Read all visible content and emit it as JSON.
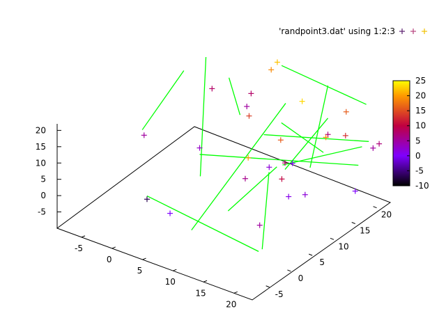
{
  "chart_data": {
    "type": "scatter",
    "legend": {
      "label": "'randpoint3.dat' using 1:2:3",
      "position": "top-right",
      "sample_colors": [
        "#5a1e6e",
        "#b8437e",
        "#f0c000"
      ]
    },
    "axes": {
      "x": {
        "ticks": [
          -5,
          0,
          5,
          10,
          15,
          20
        ],
        "range": [
          -9,
          23
        ]
      },
      "y": {
        "ticks": [
          -5,
          0,
          5,
          10,
          15,
          20
        ],
        "range": [
          -9,
          23
        ]
      },
      "z": {
        "ticks": [
          -5,
          0,
          5,
          10,
          15,
          20
        ],
        "range": [
          -10,
          22
        ]
      }
    },
    "colorbox": {
      "ticks": [
        -10,
        -5,
        0,
        5,
        10,
        15,
        20,
        25
      ],
      "range": [
        -10,
        25
      ],
      "palette": [
        {
          "v": -10,
          "c": "#000000"
        },
        {
          "v": 0,
          "c": "#7f00ff"
        },
        {
          "v": 10,
          "c": "#c00040"
        },
        {
          "v": 20,
          "c": "#ff9a00"
        },
        {
          "v": 25,
          "c": "#ffff00"
        }
      ]
    },
    "segment_color": "#00ff00",
    "points": [
      {
        "x": -6,
        "y": 7,
        "z": 5
      },
      {
        "x": -2,
        "y": 2,
        "z": -7
      },
      {
        "x": 6,
        "y": -4,
        "z": 0
      },
      {
        "x": 1,
        "y": 10,
        "z": 3
      },
      {
        "x": 1,
        "y": 21,
        "z": 5
      },
      {
        "x": 1,
        "y": 22,
        "z": 8
      },
      {
        "x": -4,
        "y": 20,
        "z": 8
      },
      {
        "x": 11,
        "y": 12,
        "z": 2
      },
      {
        "x": 12,
        "y": 5,
        "z": 6
      },
      {
        "x": 7,
        "y": 13,
        "z": 14
      },
      {
        "x": 15,
        "y": 9,
        "z": 16
      },
      {
        "x": 6,
        "y": 21,
        "z": 22
      },
      {
        "x": 5,
        "y": 21,
        "z": 19
      },
      {
        "x": 15,
        "y": 14,
        "z": 23
      },
      {
        "x": 12,
        "y": 16,
        "z": 0
      },
      {
        "x": 18,
        "y": 5,
        "z": 10
      },
      {
        "x": 17,
        "y": 8,
        "z": 1
      },
      {
        "x": 20,
        "y": 17,
        "z": 13
      },
      {
        "x": 18,
        "y": 20,
        "z": 16
      },
      {
        "x": 21,
        "y": 22,
        "z": 5
      },
      {
        "x": 15,
        "y": 10,
        "z": 8
      },
      {
        "x": 23,
        "y": 15,
        "z": 0
      },
      {
        "x": 22,
        "y": 22,
        "z": 7
      },
      {
        "x": 15,
        "y": 20,
        "z": 7
      },
      {
        "x": 21,
        "y": 11,
        "z": 19
      },
      {
        "x": 19,
        "y": 9,
        "z": 2
      },
      {
        "x": 16,
        "y": 0,
        "z": 20
      },
      {
        "x": 20,
        "y": -3,
        "z": 5
      }
    ],
    "segments": [
      [
        {
          "x": -1,
          "y": 13,
          "z": -10
        },
        {
          "x": -5,
          "y": 20,
          "z": 17
        }
      ],
      [
        {
          "x": -2,
          "y": 2,
          "z": -6
        },
        {
          "x": 17,
          "y": 1,
          "z": -9
        }
      ],
      [
        {
          "x": 1,
          "y": 10,
          "z": 1
        },
        {
          "x": 20,
          "y": 20,
          "z": 1
        }
      ],
      [
        {
          "x": -7,
          "y": 8,
          "z": 5
        },
        {
          "x": -3,
          "y": 12,
          "z": 22
        }
      ],
      [
        {
          "x": 6,
          "y": 1,
          "z": -10
        },
        {
          "x": 13,
          "y": 13,
          "z": 22
        }
      ],
      [
        {
          "x": 2,
          "y": 18,
          "z": 6
        },
        {
          "x": 3,
          "y": 14,
          "z": 22
        }
      ],
      [
        {
          "x": 6,
          "y": 22,
          "z": 20
        },
        {
          "x": 22,
          "y": 19,
          "z": 22
        }
      ],
      [
        {
          "x": 8,
          "y": 15,
          "z": 7
        },
        {
          "x": 21,
          "y": 21,
          "z": 8
        }
      ],
      [
        {
          "x": 13,
          "y": 12,
          "z": 17
        },
        {
          "x": 22,
          "y": 9,
          "z": 17
        }
      ],
      [
        {
          "x": 17,
          "y": 13,
          "z": 5
        },
        {
          "x": 15,
          "y": 20,
          "z": 22
        }
      ],
      [
        {
          "x": 15,
          "y": 10,
          "z": 6
        },
        {
          "x": 15,
          "y": 20,
          "z": 12
        }
      ],
      [
        {
          "x": 12,
          "y": 1,
          "z": 0
        },
        {
          "x": 20,
          "y": 1,
          "z": 19
        }
      ],
      [
        {
          "x": 16,
          "y": 8,
          "z": 10
        },
        {
          "x": 22,
          "y": 18,
          "z": 10
        }
      ],
      [
        {
          "x": 19,
          "y": -1,
          "z": -5
        },
        {
          "x": 18,
          "y": 2,
          "z": 15
        }
      ]
    ]
  }
}
